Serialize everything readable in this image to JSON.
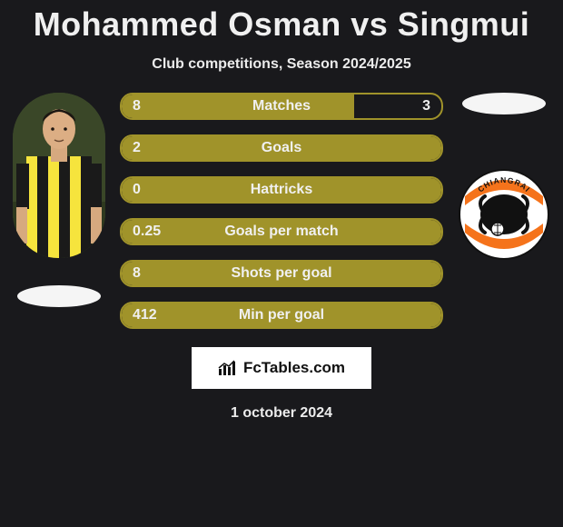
{
  "title": "Mohammed Osman vs Singmui",
  "subtitle": "Club competitions, Season 2024/2025",
  "date": "1 october 2024",
  "branding_text": "FcTables.com",
  "colors": {
    "background": "#19191c",
    "fill": "#a0932a",
    "border": "#a0932a",
    "text": "#f0f0f0",
    "ellipse": "#f5f5f5",
    "brand_bg": "#ffffff"
  },
  "bars": [
    {
      "label": "Matches",
      "left": "8",
      "right": "3",
      "fill_pct": 72.7
    },
    {
      "label": "Goals",
      "left": "2",
      "right": "",
      "fill_pct": 100
    },
    {
      "label": "Hattricks",
      "left": "0",
      "right": "",
      "fill_pct": 100
    },
    {
      "label": "Goals per match",
      "left": "0.25",
      "right": "",
      "fill_pct": 100
    },
    {
      "label": "Shots per goal",
      "left": "8",
      "right": "",
      "fill_pct": 100
    },
    {
      "label": "Min per goal",
      "left": "412",
      "right": "",
      "fill_pct": 100
    }
  ],
  "player_left": {
    "name": "Mohammed Osman",
    "shirt_stripes": [
      "#1a1a1a",
      "#f6e43d"
    ]
  },
  "player_right": {
    "name": "Singmui",
    "badge_bg": "#ffffff",
    "badge_accent": "#f5731b",
    "badge_dark": "#111111",
    "badge_text": "CHIANGRAI"
  }
}
